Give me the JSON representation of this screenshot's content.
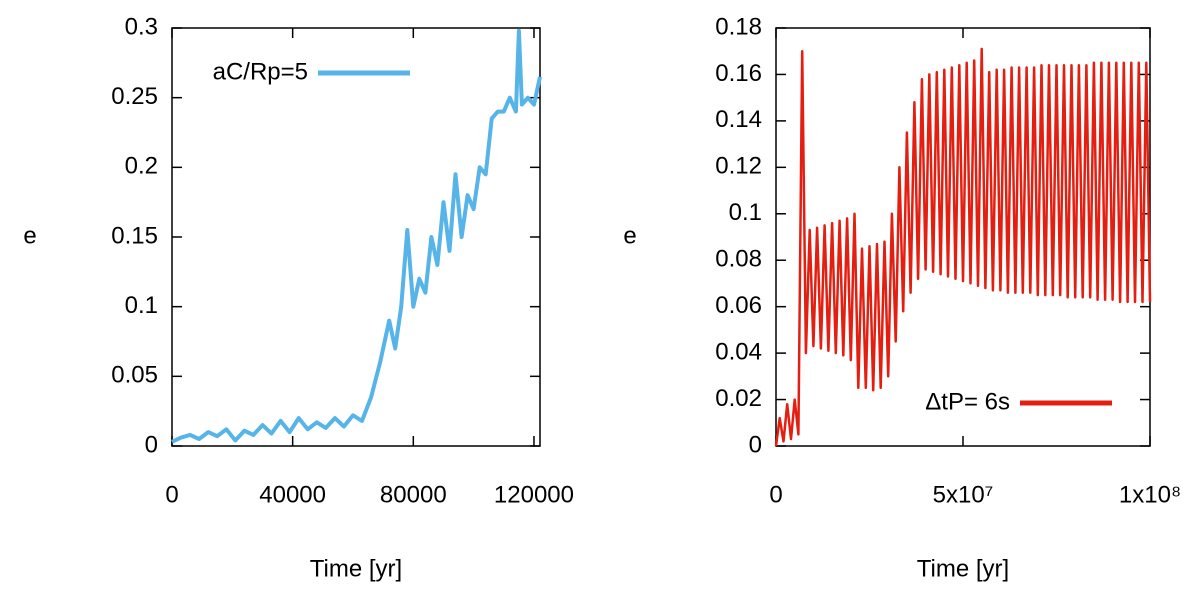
{
  "chart_data": [
    {
      "type": "line",
      "xlabel": "Time [yr]",
      "ylabel": "e",
      "x": [
        0,
        3000,
        6000,
        9000,
        12000,
        15000,
        18000,
        21000,
        24000,
        27000,
        30000,
        33000,
        36000,
        39000,
        42000,
        45000,
        48000,
        51000,
        54000,
        57000,
        60000,
        63000,
        66000,
        69000,
        72000,
        74000,
        76000,
        78000,
        80000,
        82000,
        84000,
        86000,
        88000,
        90000,
        92000,
        94000,
        96000,
        98000,
        100000,
        102000,
        104000,
        106000,
        108000,
        110000,
        112000,
        114000,
        115000,
        116000,
        118000,
        120000,
        122000
      ],
      "series": [
        {
          "name": "aC/Rp=5",
          "color": "#56b4e9",
          "values": [
            0.003,
            0.006,
            0.008,
            0.005,
            0.01,
            0.007,
            0.012,
            0.004,
            0.011,
            0.008,
            0.015,
            0.009,
            0.018,
            0.01,
            0.02,
            0.012,
            0.017,
            0.013,
            0.02,
            0.014,
            0.022,
            0.018,
            0.035,
            0.06,
            0.09,
            0.07,
            0.1,
            0.155,
            0.1,
            0.12,
            0.11,
            0.15,
            0.13,
            0.175,
            0.14,
            0.195,
            0.15,
            0.18,
            0.17,
            0.2,
            0.195,
            0.235,
            0.24,
            0.24,
            0.25,
            0.24,
            0.298,
            0.245,
            0.25,
            0.245,
            0.265
          ]
        }
      ],
      "xlim": [
        0,
        122000
      ],
      "ylim": [
        0,
        0.3
      ],
      "xticks": [
        0,
        40000,
        80000,
        120000
      ],
      "yticks": [
        0,
        0.05,
        0.1,
        0.15,
        0.2,
        0.25,
        0.3
      ],
      "legend": "upper left"
    },
    {
      "type": "line",
      "xlabel": "Time [yr]",
      "ylabel": "e",
      "x": [
        0,
        1000000.0,
        2000000.0,
        3000000.0,
        4000000.0,
        5000000.0,
        6000000.0,
        7000000.0,
        8000000.0,
        9000000.0,
        10000000.0,
        11000000.0,
        12000000.0,
        13000000.0,
        14000000.0,
        15000000.0,
        16000000.0,
        17000000.0,
        18000000.0,
        19000000.0,
        20000000.0,
        21000000.0,
        22000000.0,
        23000000.0,
        24000000.0,
        25000000.0,
        26000000.0,
        27000000.0,
        28000000.0,
        29000000.0,
        30000000.0,
        31000000.0,
        32000000.0,
        33000000.0,
        34000000.0,
        35000000.0,
        36000000.0,
        37000000.0,
        38000000.0,
        39000000.0,
        40000000.0,
        41000000.0,
        42000000.0,
        43000000.0,
        44000000.0,
        45000000.0,
        46000000.0,
        47000000.0,
        48000000.0,
        49000000.0,
        50000000.0,
        51000000.0,
        52000000.0,
        53000000.0,
        54000000.0,
        55000000.0,
        56000000.0,
        57000000.0,
        58000000.0,
        59000000.0,
        60000000.0,
        61000000.0,
        62000000.0,
        63000000.0,
        64000000.0,
        65000000.0,
        66000000.0,
        67000000.0,
        68000000.0,
        69000000.0,
        70000000.0,
        71000000.0,
        72000000.0,
        73000000.0,
        74000000.0,
        75000000.0,
        76000000.0,
        77000000.0,
        78000000.0,
        79000000.0,
        80000000.0,
        81000000.0,
        82000000.0,
        83000000.0,
        84000000.0,
        85000000.0,
        86000000.0,
        87000000.0,
        88000000.0,
        89000000.0,
        90000000.0,
        91000000.0,
        92000000.0,
        93000000.0,
        94000000.0,
        95000000.0,
        96000000.0,
        97000000.0,
        98000000.0,
        99000000.0,
        100000000.0
      ],
      "series": [
        {
          "name": "ΔtP= 6s",
          "color": "#e41f11",
          "values": [
            0,
            0.012,
            0.002,
            0.018,
            0.003,
            0.02,
            0.005,
            0.17,
            0.04,
            0.093,
            0.043,
            0.094,
            0.042,
            0.095,
            0.041,
            0.096,
            0.04,
            0.097,
            0.039,
            0.098,
            0.037,
            0.1,
            0.025,
            0.085,
            0.025,
            0.086,
            0.024,
            0.087,
            0.025,
            0.088,
            0.03,
            0.1,
            0.045,
            0.12,
            0.058,
            0.135,
            0.066,
            0.148,
            0.072,
            0.158,
            0.076,
            0.16,
            0.075,
            0.161,
            0.074,
            0.162,
            0.073,
            0.163,
            0.072,
            0.164,
            0.071,
            0.165,
            0.07,
            0.166,
            0.069,
            0.171,
            0.068,
            0.161,
            0.067,
            0.162,
            0.067,
            0.162,
            0.066,
            0.163,
            0.066,
            0.163,
            0.066,
            0.163,
            0.066,
            0.163,
            0.065,
            0.164,
            0.065,
            0.164,
            0.065,
            0.164,
            0.065,
            0.164,
            0.064,
            0.164,
            0.064,
            0.164,
            0.064,
            0.164,
            0.064,
            0.165,
            0.063,
            0.165,
            0.063,
            0.165,
            0.063,
            0.165,
            0.062,
            0.165,
            0.062,
            0.165,
            0.062,
            0.165,
            0.062,
            0.165,
            0.062
          ]
        }
      ],
      "xlim": [
        0,
        100000000.0
      ],
      "ylim": [
        0,
        0.18
      ],
      "xticks": [
        0,
        {
          "value": 50000000.0,
          "label": "5x10⁷"
        },
        {
          "value": 100000000.0,
          "label": "1x10⁸"
        }
      ],
      "yticks": [
        0,
        0.02,
        0.04,
        0.06,
        0.08,
        0.1,
        0.12,
        0.14,
        0.16,
        0.18
      ],
      "legend": "lower right"
    }
  ]
}
